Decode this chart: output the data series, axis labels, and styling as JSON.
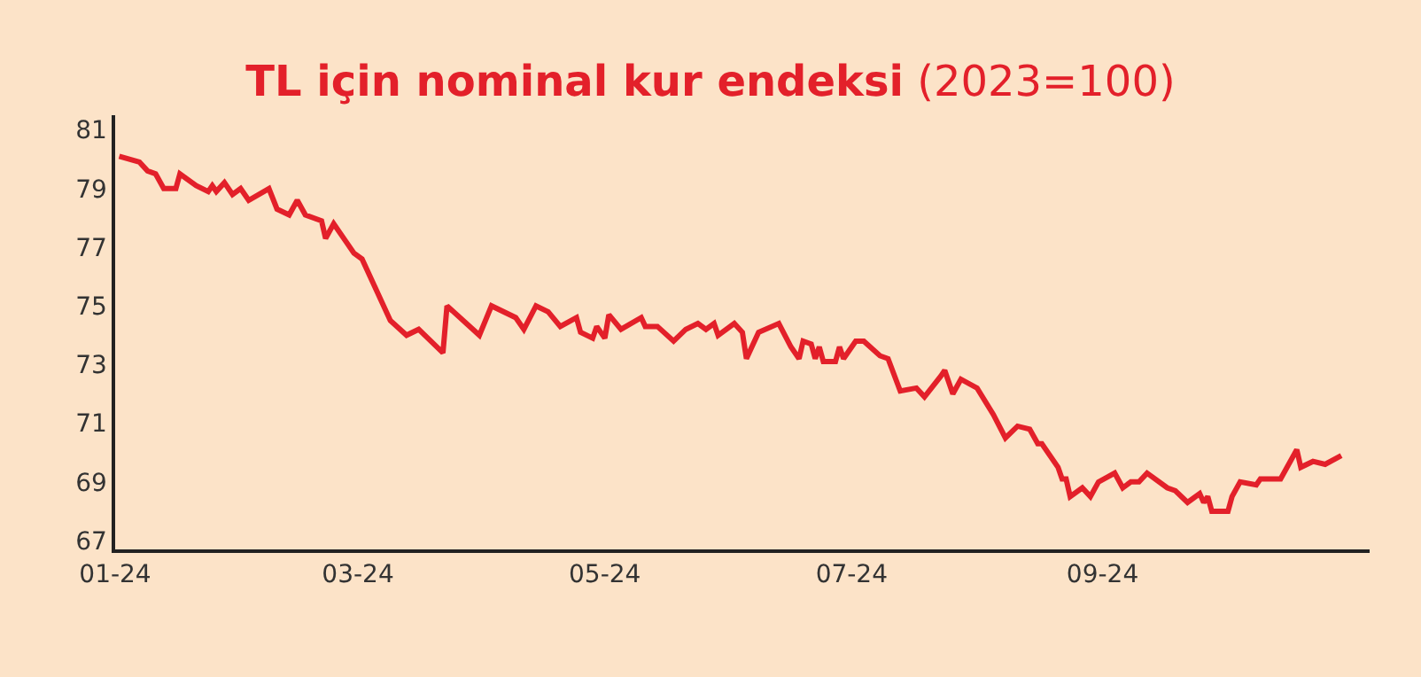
{
  "chart_data": {
    "type": "line",
    "title": "TL için nominal kur endeksi",
    "subtitle": "(2023=100)",
    "x": [
      "2024-01-02",
      "2024-01-07",
      "2024-01-09",
      "2024-01-11",
      "2024-01-13",
      "2024-01-16",
      "2024-01-17",
      "2024-01-21",
      "2024-01-24",
      "2024-01-25",
      "2024-01-26",
      "2024-01-28",
      "2024-01-30",
      "2024-02-01",
      "2024-02-03",
      "2024-02-08",
      "2024-02-10",
      "2024-02-13",
      "2024-02-15",
      "2024-02-17",
      "2024-02-21",
      "2024-02-22",
      "2024-02-24",
      "2024-02-27",
      "2024-02-29",
      "2024-03-02",
      "2024-03-05",
      "2024-03-09",
      "2024-03-13",
      "2024-03-16",
      "2024-03-22",
      "2024-03-23",
      "2024-03-31",
      "2024-04-03",
      "2024-04-09",
      "2024-04-11",
      "2024-04-14",
      "2024-04-17",
      "2024-04-20",
      "2024-04-24",
      "2024-04-25",
      "2024-04-28",
      "2024-04-29",
      "2024-05-01",
      "2024-05-02",
      "2024-05-05",
      "2024-05-10",
      "2024-05-11",
      "2024-05-14",
      "2024-05-18",
      "2024-05-21",
      "2024-05-24",
      "2024-05-26",
      "2024-05-28",
      "2024-05-29",
      "2024-06-02",
      "2024-06-04",
      "2024-06-05",
      "2024-06-08",
      "2024-06-13",
      "2024-06-16",
      "2024-06-18",
      "2024-06-19",
      "2024-06-21",
      "2024-06-22",
      "2024-06-23",
      "2024-06-24",
      "2024-06-27",
      "2024-06-28",
      "2024-06-29",
      "2024-07-02",
      "2024-07-04",
      "2024-07-08",
      "2024-07-10",
      "2024-07-13",
      "2024-07-17",
      "2024-07-19",
      "2024-07-23",
      "2024-07-24",
      "2024-07-26",
      "2024-07-28",
      "2024-08-01",
      "2024-08-05",
      "2024-08-08",
      "2024-08-11",
      "2024-08-14",
      "2024-08-16",
      "2024-08-17",
      "2024-08-21",
      "2024-08-22",
      "2024-08-23",
      "2024-08-24",
      "2024-08-27",
      "2024-08-29",
      "2024-08-31",
      "2024-09-04",
      "2024-09-06",
      "2024-09-08",
      "2024-09-10",
      "2024-09-12",
      "2024-09-17",
      "2024-09-19",
      "2024-09-22",
      "2024-09-25",
      "2024-09-26",
      "2024-09-27",
      "2024-09-28",
      "2024-10-02",
      "2024-10-03",
      "2024-10-05",
      "2024-10-09",
      "2024-10-10",
      "2024-10-15",
      "2024-10-19",
      "2024-10-20",
      "2024-10-23",
      "2024-10-26",
      "2024-10-30"
    ],
    "series": [
      {
        "color": "#e3202a",
        "values": [
          80.1,
          79.9,
          79.6,
          79.5,
          79.0,
          79.0,
          79.5,
          79.1,
          78.9,
          79.1,
          78.9,
          79.2,
          78.8,
          79.0,
          78.6,
          79.0,
          78.3,
          78.1,
          78.6,
          78.1,
          77.9,
          77.3,
          77.8,
          77.2,
          76.8,
          76.6,
          75.7,
          74.5,
          74.0,
          74.2,
          73.4,
          75.0,
          74.0,
          75.0,
          74.6,
          74.2,
          75.0,
          74.8,
          74.3,
          74.6,
          74.1,
          73.9,
          74.3,
          73.9,
          74.7,
          74.2,
          74.6,
          74.3,
          74.3,
          73.8,
          74.2,
          74.4,
          74.2,
          74.4,
          74.0,
          74.4,
          74.1,
          73.2,
          74.1,
          74.4,
          73.6,
          73.2,
          73.8,
          73.7,
          73.2,
          73.6,
          73.1,
          73.1,
          73.6,
          73.2,
          73.8,
          73.8,
          73.3,
          73.2,
          72.1,
          72.2,
          71.9,
          72.6,
          72.8,
          72.0,
          72.5,
          72.2,
          71.3,
          70.5,
          70.9,
          70.8,
          70.3,
          70.3,
          69.5,
          69.1,
          69.1,
          68.5,
          68.8,
          68.5,
          69.0,
          69.3,
          68.8,
          69.0,
          69.0,
          69.3,
          68.8,
          68.7,
          68.3,
          68.6,
          68.3,
          68.5,
          68.0,
          68.0,
          68.5,
          69.0,
          68.9,
          69.1,
          69.1,
          70.1,
          69.5,
          69.7,
          69.6,
          69.9
        ]
      }
    ],
    "xlim": [
      "2024-01-01",
      "2024-11-06"
    ],
    "xticks": [
      {
        "value": "2024-01-01",
        "label": "01-24"
      },
      {
        "value": "2024-03-01",
        "label": "03-24"
      },
      {
        "value": "2024-05-01",
        "label": "05-24"
      },
      {
        "value": "2024-07-01",
        "label": "07-24"
      },
      {
        "value": "2024-09-01",
        "label": "09-24"
      }
    ],
    "ylim": [
      66.7,
      81.5
    ],
    "yticks": [
      67,
      69,
      71,
      73,
      75,
      77,
      79,
      81
    ],
    "marker": "none",
    "line_style": "solid",
    "grid": false
  }
}
